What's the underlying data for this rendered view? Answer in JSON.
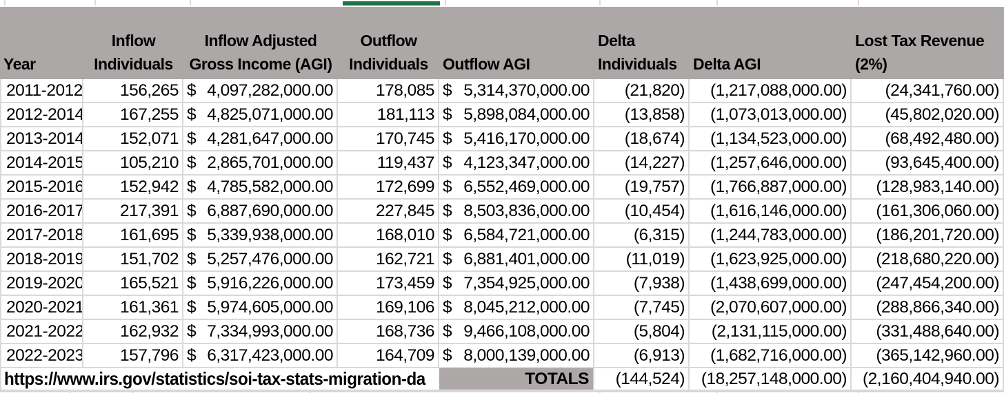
{
  "app": {
    "title": "IRS migration data spreadsheet"
  },
  "currency_symbol": "$",
  "columns": [
    {
      "key": "year",
      "label": "Year",
      "align": "left",
      "header_align": "left"
    },
    {
      "key": "inflow_individuals",
      "label": "Inflow Individuals",
      "align": "right",
      "header_align": "center"
    },
    {
      "key": "inflow_agi",
      "label": "Inflow Adjusted Gross Income (AGI)",
      "align": "currency",
      "header_align": "center"
    },
    {
      "key": "outflow_individuals",
      "label": "Outflow Individuals",
      "align": "right",
      "header_align": "center"
    },
    {
      "key": "outflow_agi",
      "label": "Outflow AGI",
      "align": "currency",
      "header_align": "left"
    },
    {
      "key": "delta_individuals",
      "label": "Delta Individuals",
      "align": "right",
      "header_align": "left"
    },
    {
      "key": "delta_agi",
      "label": "Delta AGI",
      "align": "right",
      "header_align": "left"
    },
    {
      "key": "lost_tax_revenue",
      "label": "Lost Tax Revenue (2%)",
      "align": "right",
      "header_align": "left"
    }
  ],
  "rows": [
    [
      "2011-2012",
      "156,265",
      "4,097,282,000.00",
      "178,085",
      "5,314,370,000.00",
      "(21,820)",
      "(1,217,088,000.00)",
      "(24,341,760.00)"
    ],
    [
      "2012-2014",
      "167,255",
      "4,825,071,000.00",
      "181,113",
      "5,898,084,000.00",
      "(13,858)",
      "(1,073,013,000.00)",
      "(45,802,020.00)"
    ],
    [
      "2013-2014",
      "152,071",
      "4,281,647,000.00",
      "170,745",
      "5,416,170,000.00",
      "(18,674)",
      "(1,134,523,000.00)",
      "(68,492,480.00)"
    ],
    [
      "2014-2015",
      "105,210",
      "2,865,701,000.00",
      "119,437",
      "4,123,347,000.00",
      "(14,227)",
      "(1,257,646,000.00)",
      "(93,645,400.00)"
    ],
    [
      "2015-2016",
      "152,942",
      "4,785,582,000.00",
      "172,699",
      "6,552,469,000.00",
      "(19,757)",
      "(1,766,887,000.00)",
      "(128,983,140.00)"
    ],
    [
      "2016-2017",
      "217,391",
      "6,887,690,000.00",
      "227,845",
      "8,503,836,000.00",
      "(10,454)",
      "(1,616,146,000.00)",
      "(161,306,060.00)"
    ],
    [
      "2017-2018",
      "161,695",
      "5,339,938,000.00",
      "168,010",
      "6,584,721,000.00",
      "(6,315)",
      "(1,244,783,000.00)",
      "(186,201,720.00)"
    ],
    [
      "2018-2019",
      "151,702",
      "5,257,476,000.00",
      "162,721",
      "6,881,401,000.00",
      "(11,019)",
      "(1,623,925,000.00)",
      "(218,680,220.00)"
    ],
    [
      "2019-2020",
      "165,521",
      "5,916,226,000.00",
      "173,459",
      "7,354,925,000.00",
      "(7,938)",
      "(1,438,699,000.00)",
      "(247,454,200.00)"
    ],
    [
      "2020-2021",
      "161,361",
      "5,974,605,000.00",
      "169,106",
      "8,045,212,000.00",
      "(7,745)",
      "(2,070,607,000.00)",
      "(288,866,340.00)"
    ],
    [
      "2021-2022",
      "162,932",
      "7,334,993,000.00",
      "168,736",
      "9,466,108,000.00",
      "(5,804)",
      "(2,131,115,000.00)",
      "(331,488,640.00)"
    ],
    [
      "2022-2023",
      "157,796",
      "6,317,423,000.00",
      "164,709",
      "8,000,139,000.00",
      "(6,913)",
      "(1,682,716,000.00)",
      "(365,142,960.00)"
    ]
  ],
  "footer": {
    "source_url": "https://www.irs.gov/statistics/soi-tax-stats-migration-da",
    "totals_label": "TOTALS",
    "totals": {
      "delta_individuals": "(144,524)",
      "delta_agi": "(18,257,148,000.00)",
      "lost_tax_revenue": "(2,160,404,940.00)"
    }
  },
  "colors": {
    "header_bg": "#aca8a8",
    "grid_line": "#dbd8d8",
    "active_cell_green": "#1e7145",
    "text": "#000000"
  }
}
